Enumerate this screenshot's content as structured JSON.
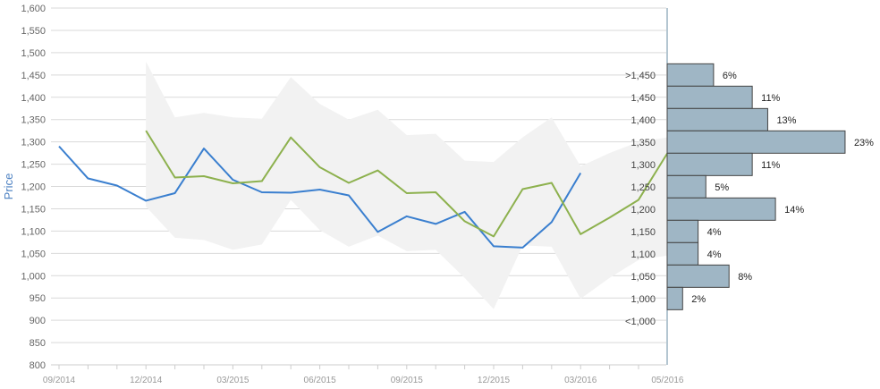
{
  "chart_data": {
    "type": "line",
    "ylabel": "Price",
    "ylim": [
      800,
      1600
    ],
    "y_ticks": [
      "800",
      "850",
      "900",
      "950",
      "1,000",
      "1,050",
      "1,100",
      "1,150",
      "1,200",
      "1,250",
      "1,300",
      "1,350",
      "1,400",
      "1,450",
      "1,500",
      "1,550",
      "1,600"
    ],
    "x_ticks": [
      "09/2014",
      "12/2014",
      "03/2015",
      "06/2015",
      "09/2015",
      "12/2015",
      "03/2016",
      "05/2016"
    ],
    "grid": true,
    "colors": {
      "series_1": "#3a7fcf",
      "series_2": "#8db14e",
      "band": "#f2f2f2",
      "hist_bar": "#9fb6c5",
      "hist_border": "#444444",
      "grid": "#d9d9d9",
      "axis_label": "#4a7fc1"
    },
    "series": [
      {
        "x": [
          0,
          1,
          2,
          3,
          4,
          5,
          6,
          7,
          8,
          9,
          10,
          11,
          12,
          13,
          14,
          15,
          16,
          17,
          18
        ],
        "values": [
          1290,
          1218,
          1202,
          1168,
          1185,
          1285,
          1215,
          1187,
          1186,
          1193,
          1180,
          1098,
          1133,
          1116,
          1143,
          1066,
          1063,
          1120,
          1230
        ]
      },
      {
        "x": [
          3,
          4,
          5,
          6,
          7,
          8,
          9,
          10,
          11,
          12,
          13,
          14,
          15,
          16,
          17,
          18,
          19,
          20,
          21
        ],
        "values": [
          1325,
          1220,
          1223,
          1207,
          1212,
          1310,
          1243,
          1208,
          1236,
          1185,
          1187,
          1122,
          1088,
          1194,
          1208,
          1093,
          1130,
          1170,
          1275
        ]
      }
    ],
    "band": {
      "x": [
        3,
        4,
        5,
        6,
        7,
        8,
        9,
        10,
        11,
        12,
        13,
        14,
        15,
        16,
        17,
        18,
        19,
        20,
        21
      ],
      "upper": [
        1480,
        1355,
        1365,
        1355,
        1352,
        1445,
        1385,
        1350,
        1372,
        1315,
        1318,
        1258,
        1255,
        1310,
        1355,
        1245,
        1275,
        1300,
        1310
      ],
      "lower": [
        1155,
        1085,
        1080,
        1058,
        1070,
        1170,
        1102,
        1065,
        1090,
        1055,
        1058,
        995,
        925,
        1068,
        1065,
        948,
        995,
        1035,
        1045
      ]
    },
    "distribution": {
      "bins": [
        {
          "label": ">1,450",
          "pct": 6,
          "pct_label": "6%"
        },
        {
          "label": "1,450",
          "pct": 11,
          "pct_label": "11%"
        },
        {
          "label": "1,400",
          "pct": 13,
          "pct_label": "13%"
        },
        {
          "label": "1,350",
          "pct": 23,
          "pct_label": "23%"
        },
        {
          "label": "1,300",
          "pct": 11,
          "pct_label": "11%"
        },
        {
          "label": "1,250",
          "pct": 5,
          "pct_label": "5%"
        },
        {
          "label": "1,200",
          "pct": 14,
          "pct_label": "14%"
        },
        {
          "label": "1,150",
          "pct": 4,
          "pct_label": "4%"
        },
        {
          "label": "1,100",
          "pct": 4,
          "pct_label": "4%"
        },
        {
          "label": "1,050",
          "pct": 8,
          "pct_label": "8%"
        },
        {
          "label": "1,000",
          "pct": 2,
          "pct_label": "2%"
        },
        {
          "label": "<1,000",
          "pct": null,
          "pct_label": ""
        }
      ]
    }
  }
}
